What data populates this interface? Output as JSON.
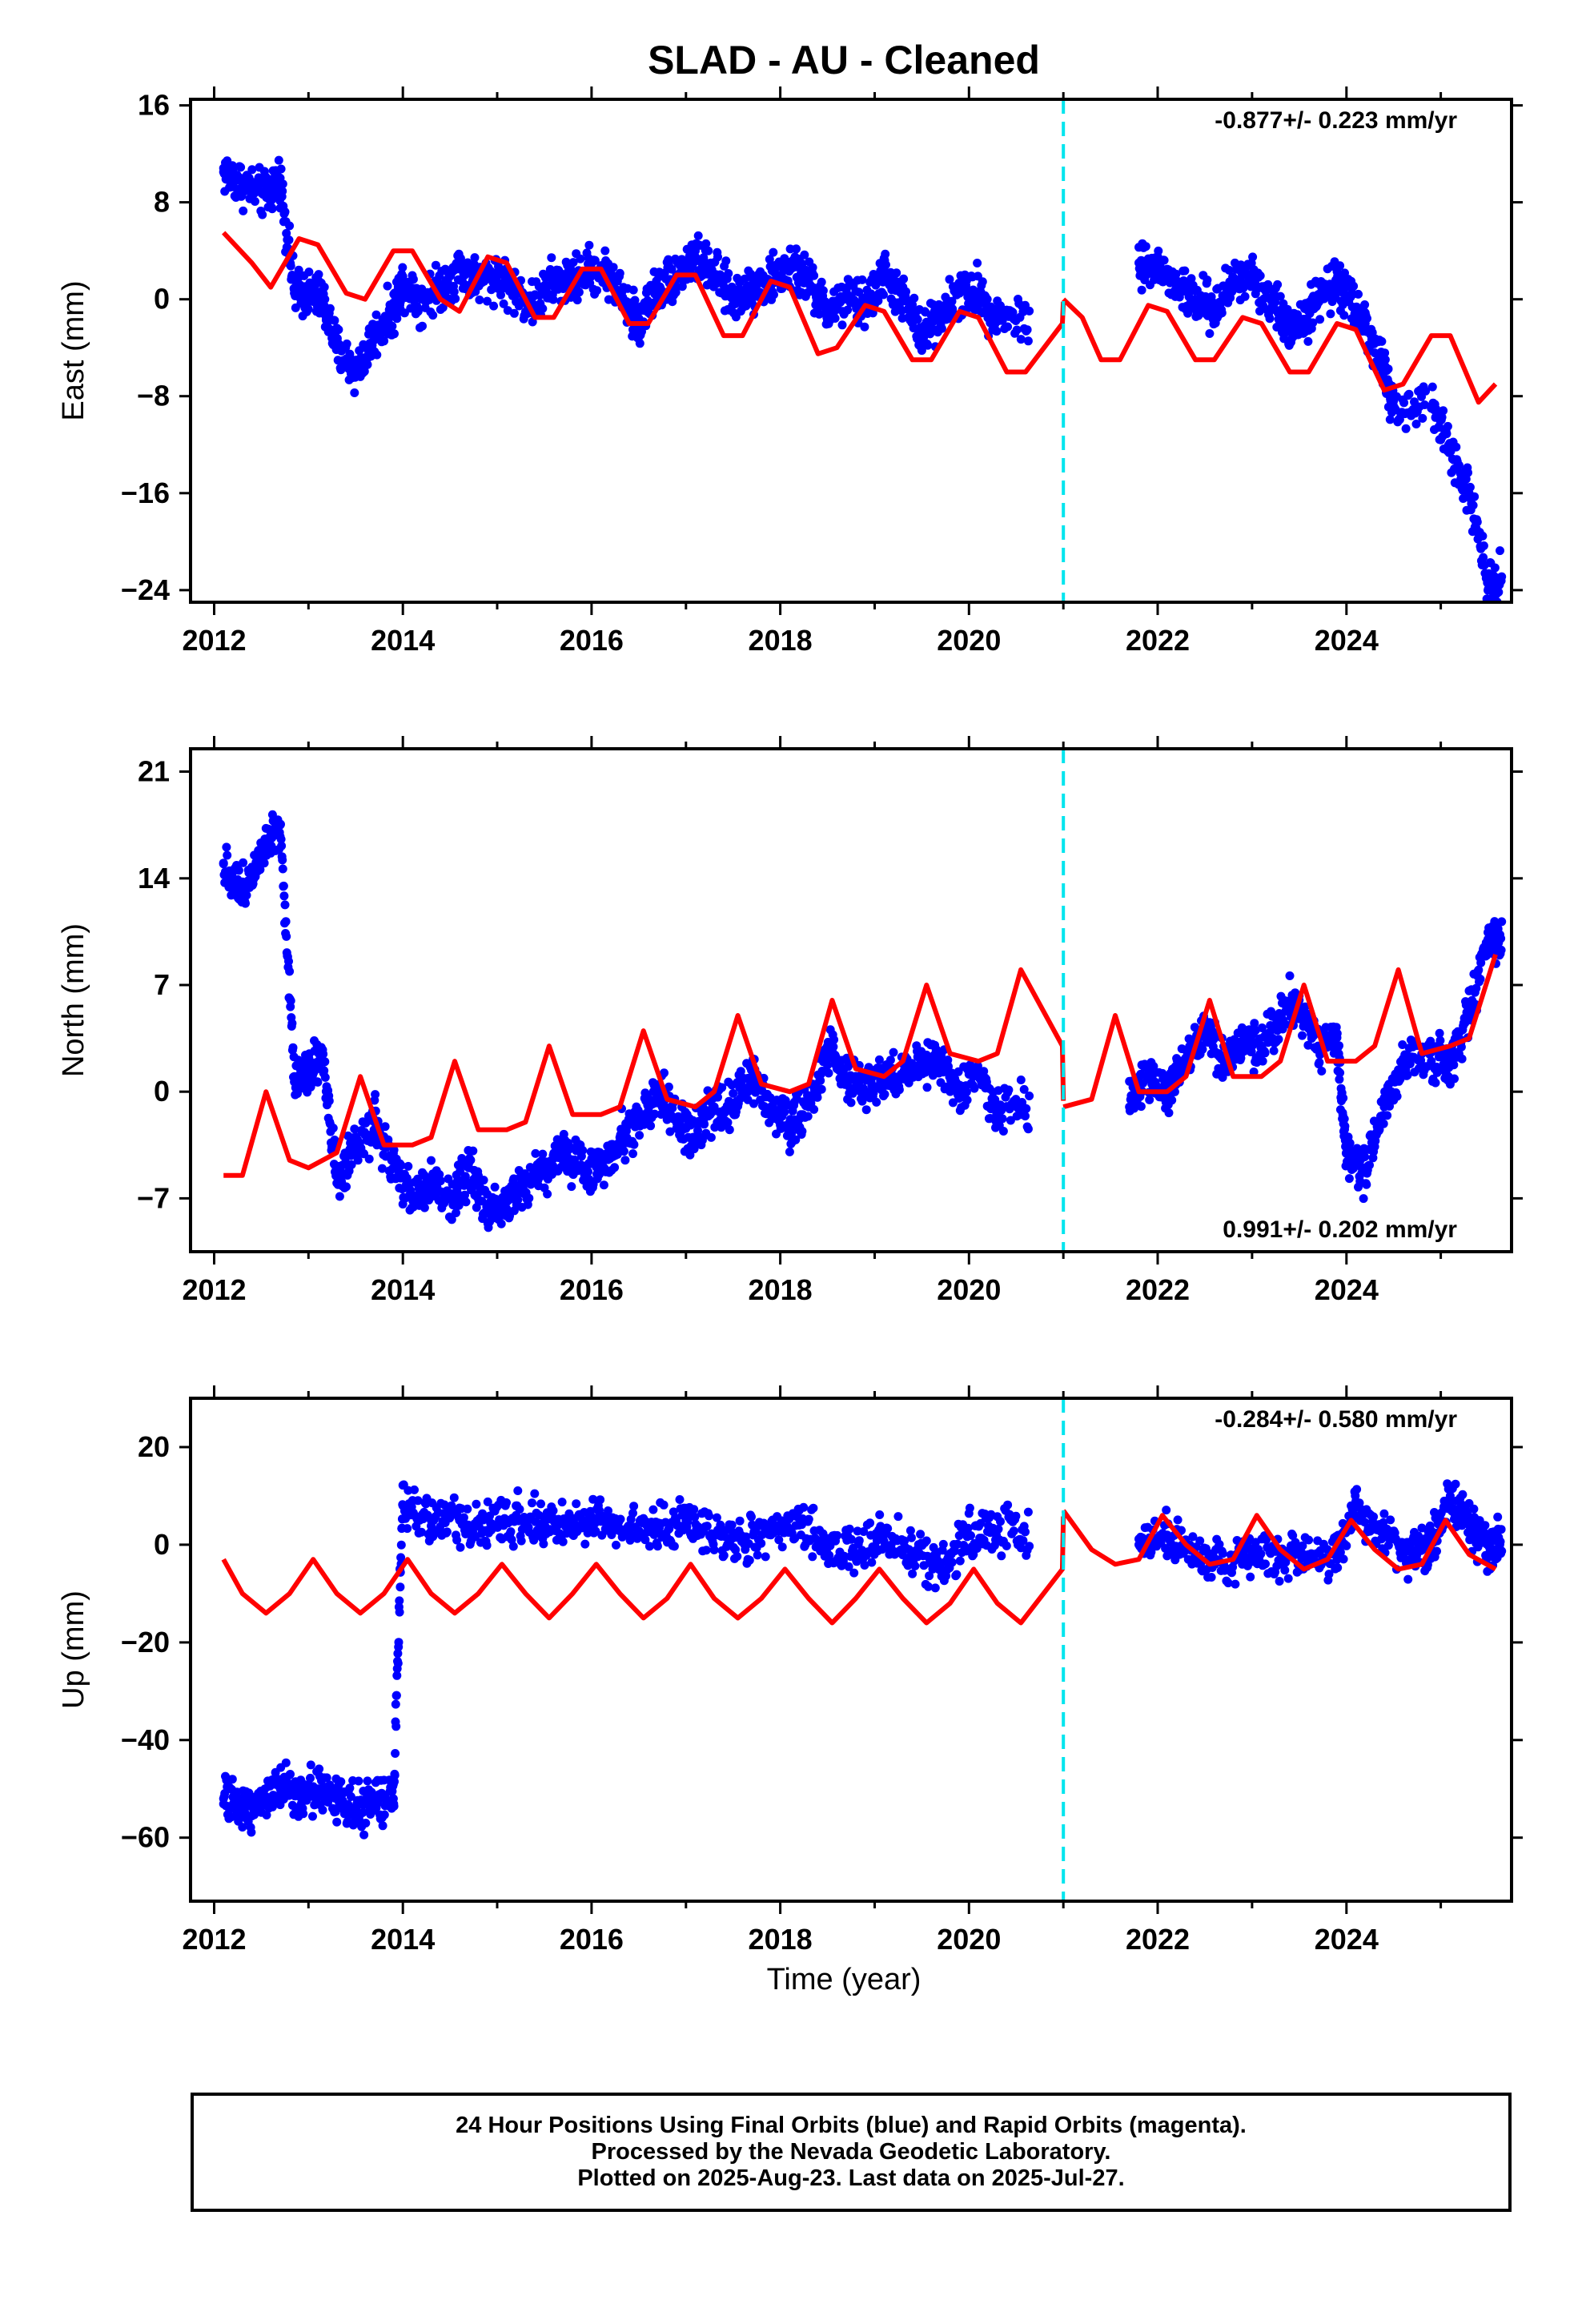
{
  "title": "SLAD  - AU - Cleaned",
  "xlabel": "Time (year)",
  "footer": [
    "24 Hour Positions Using Final Orbits (blue) and Rapid Orbits (magenta).",
    "Processed by the Nevada Geodetic Laboratory.",
    "Plotted on 2025-Aug-23. Last data on 2025-Jul-27."
  ],
  "colors": {
    "data": "#0000ff",
    "model": "#ff0000",
    "break_line": "#00e5ee",
    "axis": "#000000"
  },
  "chart_data": [
    {
      "type": "scatter",
      "panel": "east",
      "ylabel": "East (mm)",
      "rate": "-0.877+/- 0.223 mm/yr",
      "rate_position": "top-right",
      "xlim": [
        2011.75,
        2025.75
      ],
      "ylim": [
        -25,
        16.5
      ],
      "yticks": [
        16,
        8,
        0,
        -8,
        -16,
        -24
      ],
      "xticks": [
        2012,
        2014,
        2016,
        2018,
        2020,
        2022,
        2024
      ],
      "grid": false,
      "break_epoch": 2021.0,
      "series": [
        {
          "role": "data",
          "x": [
            2012.1,
            2012.3,
            2012.55,
            2012.7,
            2012.85,
            2013.0,
            2013.15,
            2013.3,
            2013.5,
            2013.7,
            2013.9,
            2014.0,
            2014.2,
            2014.4,
            2014.6,
            2014.8,
            2015.0,
            2015.2,
            2015.4,
            2015.6,
            2015.8,
            2016.0,
            2016.2,
            2016.4,
            2016.5,
            2016.7,
            2016.9,
            2017.1,
            2017.3,
            2017.5,
            2017.7,
            2017.9,
            2018.1,
            2018.3,
            2018.5,
            2018.7,
            2018.9,
            2019.1,
            2019.3,
            2019.5,
            2019.7,
            2019.9,
            2020.1,
            2020.3,
            2021.8,
            2022.0,
            2022.2,
            2022.4,
            2022.6,
            2022.8,
            2023.0,
            2023.2,
            2023.4,
            2023.6,
            2023.8,
            2024.0,
            2024.2,
            2024.4,
            2024.5,
            2024.9,
            2025.1,
            2025.3,
            2025.5
          ],
          "y": [
            10.5,
            9.5,
            8.5,
            10,
            0.5,
            0.5,
            0,
            -4,
            -6,
            -3,
            -1,
            1.5,
            0,
            1,
            2.5,
            1.5,
            2,
            0.5,
            -0.5,
            1.5,
            1.5,
            2.5,
            2,
            -1,
            -2,
            1,
            2,
            3.5,
            2,
            0,
            1,
            1.5,
            2.5,
            1.5,
            -1,
            0,
            -0.5,
            2,
            0,
            -3,
            -1,
            0.5,
            0.5,
            -1.5,
            3,
            2.5,
            1,
            0,
            -1,
            1.5,
            2,
            0,
            -2.5,
            -1,
            1,
            1,
            -2,
            -6,
            -9,
            -9,
            -12,
            -16,
            -23
          ]
        },
        {
          "role": "model",
          "x": [
            2012.1,
            2012.4,
            2012.6,
            2012.9,
            2013.1,
            2013.4,
            2013.6,
            2013.9,
            2014.1,
            2014.4,
            2014.6,
            2014.9,
            2015.1,
            2015.4,
            2015.6,
            2015.9,
            2016.1,
            2016.4,
            2016.6,
            2016.9,
            2017.1,
            2017.4,
            2017.6,
            2017.9,
            2018.1,
            2018.4,
            2018.6,
            2018.9,
            2019.1,
            2019.4,
            2019.6,
            2019.9,
            2020.1,
            2020.4,
            2020.6,
            2020.99,
            2021.0,
            2021.2,
            2021.4,
            2021.6,
            2021.9,
            2022.1,
            2022.4,
            2022.6,
            2022.9,
            2023.1,
            2023.4,
            2023.6,
            2023.9,
            2024.1,
            2024.4,
            2024.6,
            2024.9,
            2025.1,
            2025.4,
            2025.58
          ],
          "y": [
            5.5,
            3,
            1,
            5,
            4.5,
            0.5,
            0,
            4,
            4,
            0,
            -1,
            3.5,
            3,
            -1.5,
            -1.5,
            2.5,
            2.5,
            -2,
            -2,
            2,
            2,
            -3,
            -3,
            1.5,
            1,
            -4.5,
            -4,
            -0.5,
            -1,
            -5,
            -5,
            -1,
            -1.5,
            -6,
            -6,
            -2,
            0,
            -1.5,
            -5,
            -5,
            -0.5,
            -1,
            -5,
            -5,
            -1.5,
            -2,
            -6,
            -6,
            -2,
            -2.5,
            -7.5,
            -7,
            -3,
            -3,
            -8.5,
            -7
          ]
        }
      ]
    },
    {
      "type": "scatter",
      "panel": "north",
      "ylabel": "North (mm)",
      "rate": "0.991+/- 0.202 mm/yr",
      "rate_position": "bottom-right",
      "xlim": [
        2011.75,
        2025.75
      ],
      "ylim": [
        -10.5,
        22.5
      ],
      "yticks": [
        21,
        14,
        7,
        0,
        -7
      ],
      "xticks": [
        2012,
        2014,
        2016,
        2018,
        2020,
        2022,
        2024
      ],
      "grid": false,
      "break_epoch": 2021.0,
      "series": [
        {
          "role": "data",
          "x": [
            2012.1,
            2012.3,
            2012.5,
            2012.7,
            2012.85,
            2013.0,
            2013.15,
            2013.3,
            2013.5,
            2013.7,
            2013.9,
            2014.1,
            2014.3,
            2014.5,
            2014.7,
            2014.9,
            2015.1,
            2015.3,
            2015.5,
            2015.7,
            2015.9,
            2016.1,
            2016.3,
            2016.5,
            2016.7,
            2016.9,
            2017.1,
            2017.3,
            2017.5,
            2017.7,
            2017.9,
            2018.1,
            2018.3,
            2018.5,
            2018.7,
            2018.9,
            2019.1,
            2019.3,
            2019.5,
            2019.7,
            2019.9,
            2020.1,
            2020.3,
            2021.7,
            2021.9,
            2022.1,
            2022.3,
            2022.5,
            2022.7,
            2022.9,
            2023.1,
            2023.3,
            2023.5,
            2023.7,
            2023.9,
            2024.0,
            2024.2,
            2024.4,
            2024.6,
            2024.9,
            2025.1,
            2025.3,
            2025.5
          ],
          "y": [
            15,
            13,
            16,
            17.5,
            1,
            1.5,
            2.5,
            -6,
            -4,
            -2,
            -5,
            -7,
            -6,
            -7,
            -5,
            -8,
            -7,
            -6,
            -5,
            -4,
            -5,
            -5,
            -3,
            -2,
            0,
            -2,
            -3,
            -1,
            -1,
            1,
            -1,
            -2,
            -1,
            3,
            1,
            0,
            1,
            1,
            2,
            2,
            0,
            1,
            -1,
            -1,
            1,
            0,
            2,
            4,
            2,
            3,
            3,
            5,
            6,
            3,
            3,
            -4,
            -5,
            -1,
            2,
            2,
            2,
            5,
            10
          ]
        },
        {
          "role": "model",
          "x": [
            2012.1,
            2012.3,
            2012.55,
            2012.8,
            2013.0,
            2013.3,
            2013.55,
            2013.8,
            2014.1,
            2014.3,
            2014.55,
            2014.8,
            2015.1,
            2015.3,
            2015.55,
            2015.8,
            2016.1,
            2016.3,
            2016.55,
            2016.8,
            2017.1,
            2017.3,
            2017.55,
            2017.8,
            2018.1,
            2018.3,
            2018.55,
            2018.8,
            2019.1,
            2019.3,
            2019.55,
            2019.8,
            2020.1,
            2020.3,
            2020.55,
            2020.99,
            2021.0,
            2021.3,
            2021.55,
            2021.8,
            2022.1,
            2022.3,
            2022.55,
            2022.8,
            2023.1,
            2023.3,
            2023.55,
            2023.8,
            2024.1,
            2024.3,
            2024.55,
            2024.8,
            2025.1,
            2025.3,
            2025.58
          ],
          "y": [
            -5.5,
            -5.5,
            0,
            -4.5,
            -5,
            -4,
            1,
            -3.5,
            -3.5,
            -3,
            2,
            -2.5,
            -2.5,
            -2,
            3,
            -1.5,
            -1.5,
            -1,
            4,
            -0.5,
            -1,
            0,
            5,
            0.5,
            0,
            0.5,
            6,
            1.5,
            1,
            2,
            7,
            2.5,
            2,
            2.5,
            8,
            3,
            -1,
            -0.5,
            5,
            0,
            0,
            1,
            6,
            1,
            1,
            2,
            7,
            2,
            2,
            3,
            8,
            2.5,
            3,
            3.5,
            9
          ]
        }
      ]
    },
    {
      "type": "scatter",
      "panel": "up",
      "ylabel": "Up (mm)",
      "rate": "-0.284+/- 0.580 mm/yr",
      "rate_position": "top-right",
      "xlim": [
        2011.75,
        2025.75
      ],
      "ylim": [
        -73,
        30
      ],
      "yticks": [
        20,
        0,
        -20,
        -40,
        -60
      ],
      "xticks": [
        2012,
        2014,
        2016,
        2018,
        2020,
        2022,
        2024
      ],
      "grid": false,
      "break_epoch": 2021.0,
      "series": [
        {
          "role": "data",
          "x": [
            2012.1,
            2012.3,
            2012.5,
            2012.7,
            2012.9,
            2013.1,
            2013.3,
            2013.5,
            2013.7,
            2013.9,
            2014.0,
            2014.3,
            2014.6,
            2014.9,
            2015.2,
            2015.5,
            2015.8,
            2016.1,
            2016.4,
            2016.7,
            2017.0,
            2017.3,
            2017.6,
            2017.9,
            2018.2,
            2018.5,
            2018.8,
            2019.1,
            2019.4,
            2019.7,
            2020.0,
            2020.3,
            2021.8,
            2022.1,
            2022.4,
            2022.7,
            2023.0,
            2023.3,
            2023.6,
            2023.9,
            2024.1,
            2024.4,
            2024.7,
            2024.9,
            2025.1,
            2025.3,
            2025.5
          ],
          "y": [
            -52,
            -54,
            -52,
            -50,
            -51,
            -50,
            -52,
            -54,
            -53,
            -52,
            8,
            5,
            5,
            3,
            6,
            4,
            4,
            6,
            3,
            3,
            5,
            2,
            1,
            2,
            4,
            0,
            -2,
            2,
            -2,
            -4,
            2,
            3,
            0,
            2,
            -2,
            -4,
            -2,
            -3,
            -2,
            -2,
            8,
            2,
            -2,
            -1,
            10,
            4,
            0
          ]
        },
        {
          "role": "model",
          "x": [
            2012.1,
            2012.3,
            2012.55,
            2012.8,
            2013.05,
            2013.3,
            2013.55,
            2013.8,
            2014.05,
            2014.3,
            2014.55,
            2014.8,
            2015.05,
            2015.3,
            2015.55,
            2015.8,
            2016.05,
            2016.3,
            2016.55,
            2016.8,
            2017.05,
            2017.3,
            2017.55,
            2017.8,
            2018.05,
            2018.3,
            2018.55,
            2018.8,
            2019.05,
            2019.3,
            2019.55,
            2019.8,
            2020.05,
            2020.3,
            2020.55,
            2020.99,
            2021.0,
            2021.3,
            2021.55,
            2021.8,
            2022.05,
            2022.3,
            2022.55,
            2022.8,
            2023.05,
            2023.3,
            2023.55,
            2023.8,
            2024.05,
            2024.3,
            2024.55,
            2024.8,
            2025.05,
            2025.3,
            2025.58
          ],
          "y": [
            -3,
            -10,
            -14,
            -10,
            -3,
            -10,
            -14,
            -10,
            -3,
            -10,
            -14,
            -10,
            -4,
            -10,
            -15,
            -10,
            -4,
            -10,
            -15,
            -11,
            -4,
            -11,
            -15,
            -11,
            -5,
            -11,
            -16,
            -11,
            -5,
            -11,
            -16,
            -12,
            -5,
            -12,
            -16,
            -5,
            7,
            -1,
            -4,
            -3,
            6,
            0,
            -4,
            -3,
            6,
            -1,
            -5,
            -3,
            5,
            -1,
            -5,
            -4,
            5,
            -2,
            -5
          ]
        }
      ]
    }
  ]
}
